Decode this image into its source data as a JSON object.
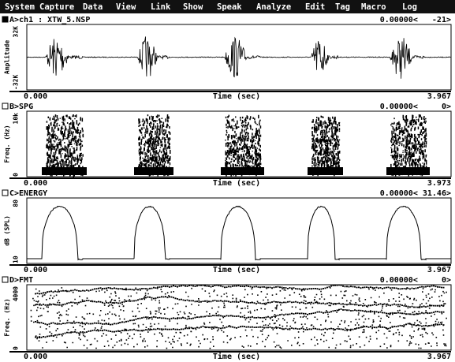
{
  "menu": [
    "System",
    "Capture",
    "Data",
    "View",
    "Link",
    "Show",
    "Speak",
    "Analyze",
    "Edit",
    "Tag",
    "Macro",
    "Log"
  ],
  "panels": [
    {
      "title": "A>ch1 : XTW_5.NSP",
      "readout": "0.00000<   -21>",
      "y_label": "Amplitude",
      "y_top": "32K",
      "y_bottom": "-32K",
      "x_start": "0.000",
      "x_label": "Time (sec)",
      "x_end": "3.967"
    },
    {
      "title": "B>SPG",
      "readout": "0.00000<     0>",
      "y_label": "Freq. (Hz)",
      "y_top": "10k",
      "y_bottom": "0",
      "x_start": "0.000",
      "x_label": "Time (sec)",
      "x_end": "3.973"
    },
    {
      "title": "C>ENERGY",
      "readout": "0.00000< 31.46>",
      "y_label": "dB (SPL)",
      "y_top": "80",
      "y_bottom": "10",
      "x_start": "0.000",
      "x_label": "Time (sec)",
      "x_end": "3.967"
    },
    {
      "title": "D>FMT",
      "readout": "0.00000<     0>",
      "y_label": "Freq. (Hz)",
      "y_top": "4000",
      "y_bottom": "0",
      "x_start": "0.000",
      "x_label": "Time (sec)",
      "x_end": "3.967"
    }
  ]
}
